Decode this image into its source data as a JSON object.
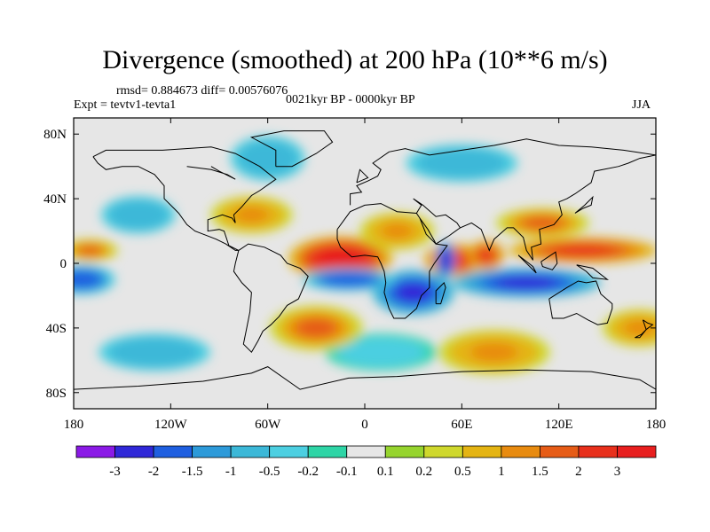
{
  "title": "Divergence (smoothed) at 200 hPa (10**6 m/s)",
  "stats_text": "rmsd= 0.884673 diff= 0.00576076",
  "experiment_text": "Expt = tevtv1-tevta1",
  "period_text": "0021kyr BP - 0000kyr BP",
  "season": "JJA",
  "map": {
    "projection": "cylindrical-equidistant",
    "lon_range": [
      -180,
      180
    ],
    "lat_range": [
      -90,
      90
    ],
    "lat_ticks": [
      {
        "lat": 80,
        "label": "80N"
      },
      {
        "lat": 40,
        "label": "40N"
      },
      {
        "lat": 0,
        "label": "0"
      },
      {
        "lat": -40,
        "label": "40S"
      },
      {
        "lat": -80,
        "label": "80S"
      }
    ],
    "lon_ticks": [
      {
        "lon": -180,
        "label": "180"
      },
      {
        "lon": -120,
        "label": "120W"
      },
      {
        "lon": -60,
        "label": "60W"
      },
      {
        "lon": 0,
        "label": "0"
      },
      {
        "lon": 60,
        "label": "60E"
      },
      {
        "lon": 120,
        "label": "120E"
      },
      {
        "lon": 180,
        "label": "180"
      }
    ],
    "background_color": "#e6e6e6",
    "coastline_color": "#000000",
    "blobs": [
      {
        "lon": -15,
        "lat": 3,
        "rx": 28,
        "ry": 12,
        "value": 3
      },
      {
        "lon": 55,
        "lat": 2,
        "rx": 16,
        "ry": 9,
        "value": 2.5
      },
      {
        "lon": 75,
        "lat": 5,
        "rx": 10,
        "ry": 8,
        "value": 2
      },
      {
        "lon": 135,
        "lat": 8,
        "rx": 40,
        "ry": 7,
        "value": 2
      },
      {
        "lon": -170,
        "lat": 8,
        "rx": 15,
        "ry": 6,
        "value": 1.5
      },
      {
        "lon": 110,
        "lat": 25,
        "rx": 25,
        "ry": 8,
        "value": 1.5
      },
      {
        "lon": 20,
        "lat": 20,
        "rx": 20,
        "ry": 10,
        "value": 1
      },
      {
        "lon": -70,
        "lat": 30,
        "rx": 22,
        "ry": 10,
        "value": 1
      },
      {
        "lon": 30,
        "lat": -18,
        "rx": 22,
        "ry": 12,
        "value": -2.5
      },
      {
        "lon": 50,
        "lat": 2,
        "rx": 5,
        "ry": 10,
        "value": -3
      },
      {
        "lon": 100,
        "lat": -12,
        "rx": 40,
        "ry": 8,
        "value": -2.5
      },
      {
        "lon": -175,
        "lat": -10,
        "rx": 18,
        "ry": 8,
        "value": -2
      },
      {
        "lon": -10,
        "lat": -10,
        "rx": 25,
        "ry": 6,
        "value": -2
      },
      {
        "lon": -140,
        "lat": 30,
        "rx": 20,
        "ry": 10,
        "value": -1
      },
      {
        "lon": -60,
        "lat": 65,
        "rx": 20,
        "ry": 12,
        "value": -1
      },
      {
        "lon": 60,
        "lat": 62,
        "rx": 30,
        "ry": 10,
        "value": -1
      },
      {
        "lon": -130,
        "lat": -55,
        "rx": 30,
        "ry": 10,
        "value": -1
      },
      {
        "lon": 10,
        "lat": -55,
        "rx": 30,
        "ry": 10,
        "value": -0.5
      },
      {
        "lon": 80,
        "lat": -55,
        "rx": 30,
        "ry": 12,
        "value": 1
      },
      {
        "lon": -30,
        "lat": -40,
        "rx": 25,
        "ry": 12,
        "value": 1.5
      },
      {
        "lon": 170,
        "lat": -40,
        "rx": 20,
        "ry": 10,
        "value": 1
      }
    ]
  },
  "colorbar": {
    "colors": [
      "#8b1ae6",
      "#3028d8",
      "#1f5fe0",
      "#2d9ad9",
      "#3cb8d8",
      "#4ccfe1",
      "#2ed5a6",
      "#e6e6e6",
      "#96d42e",
      "#cfd82d",
      "#e4b413",
      "#e88b10",
      "#e65c17",
      "#e8301c",
      "#e81f1f"
    ],
    "labels": [
      "-3",
      "-2",
      "-1.5",
      "-1",
      "-0.5",
      "-0.2",
      "-0.1",
      "0.1",
      "0.2",
      "0.5",
      "1",
      "1.5",
      "2",
      "3"
    ]
  }
}
